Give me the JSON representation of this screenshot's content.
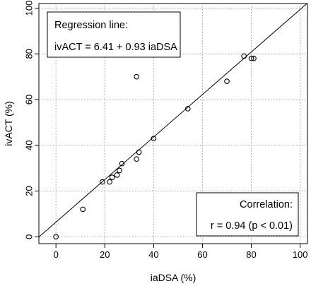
{
  "chart_data": {
    "type": "scatter",
    "xlabel": "iaDSA (%)",
    "ylabel": "ivACT (%)",
    "xlim": [
      -7,
      103
    ],
    "ylim": [
      -3,
      102
    ],
    "xticks": [
      0,
      20,
      40,
      60,
      80,
      100
    ],
    "yticks": [
      0,
      20,
      40,
      60,
      80,
      100
    ],
    "grid": true,
    "points": [
      {
        "x": 0,
        "y": 0
      },
      {
        "x": 11,
        "y": 12
      },
      {
        "x": 19,
        "y": 24
      },
      {
        "x": 22,
        "y": 24
      },
      {
        "x": 23,
        "y": 26
      },
      {
        "x": 25,
        "y": 27
      },
      {
        "x": 26,
        "y": 29
      },
      {
        "x": 27,
        "y": 32
      },
      {
        "x": 33,
        "y": 34
      },
      {
        "x": 34,
        "y": 37
      },
      {
        "x": 33,
        "y": 70
      },
      {
        "x": 40,
        "y": 43
      },
      {
        "x": 54,
        "y": 56
      },
      {
        "x": 70,
        "y": 68
      },
      {
        "x": 77,
        "y": 79
      },
      {
        "x": 80,
        "y": 78
      },
      {
        "x": 81,
        "y": 78
      }
    ],
    "regression": {
      "intercept": 6.41,
      "slope": 0.93
    },
    "annotations": {
      "regression_title": "Regression line:",
      "regression_equation": "ivACT = 6.41 + 0.93 iaDSA",
      "correlation_title": "Correlation:",
      "correlation_value": "r = 0.94 (p < 0.01)"
    }
  }
}
